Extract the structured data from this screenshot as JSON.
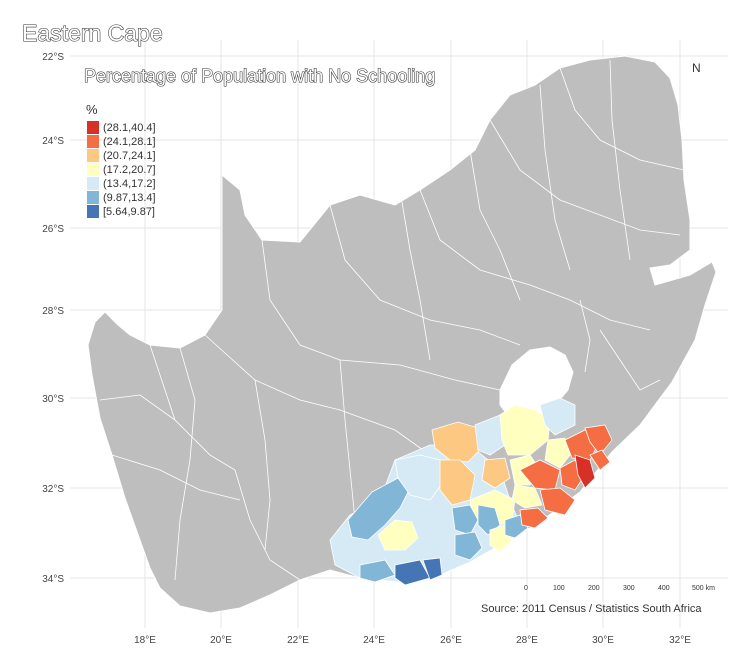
{
  "title": "Eastern Cape",
  "subtitle": "Percentage of Population with No Schooling",
  "north_label": "N",
  "source": "Source: 2011 Census / Statistics South Africa",
  "legend": {
    "title": "%",
    "items": [
      {
        "label": "(28.1,40.4]",
        "color": "#d73027"
      },
      {
        "label": "(24.1,28.1]",
        "color": "#f46d43"
      },
      {
        "label": "(20.7,24.1]",
        "color": "#fdc882"
      },
      {
        "label": "(17.2,20.7]",
        "color": "#ffffbf"
      },
      {
        "label": "(13.4,17.2]",
        "color": "#d5eaf5"
      },
      {
        "label": "(9.87,13.4]",
        "color": "#82b6d6"
      },
      {
        "label": "[5.64,9.87]",
        "color": "#4575b4"
      }
    ]
  },
  "x_ticks": [
    "18°E",
    "20°E",
    "22°E",
    "24°E",
    "26°E",
    "28°E",
    "30°E",
    "32°E"
  ],
  "y_ticks": [
    "22°S",
    "24°S",
    "26°S",
    "28°S",
    "30°S",
    "32°S",
    "34°S"
  ],
  "scale_bar": {
    "labels": [
      "0",
      "100",
      "200",
      "300",
      "400",
      "500 km"
    ]
  },
  "colors": {
    "land": "#bebebe",
    "border": "#ffffff",
    "background": "#ffffff"
  }
}
